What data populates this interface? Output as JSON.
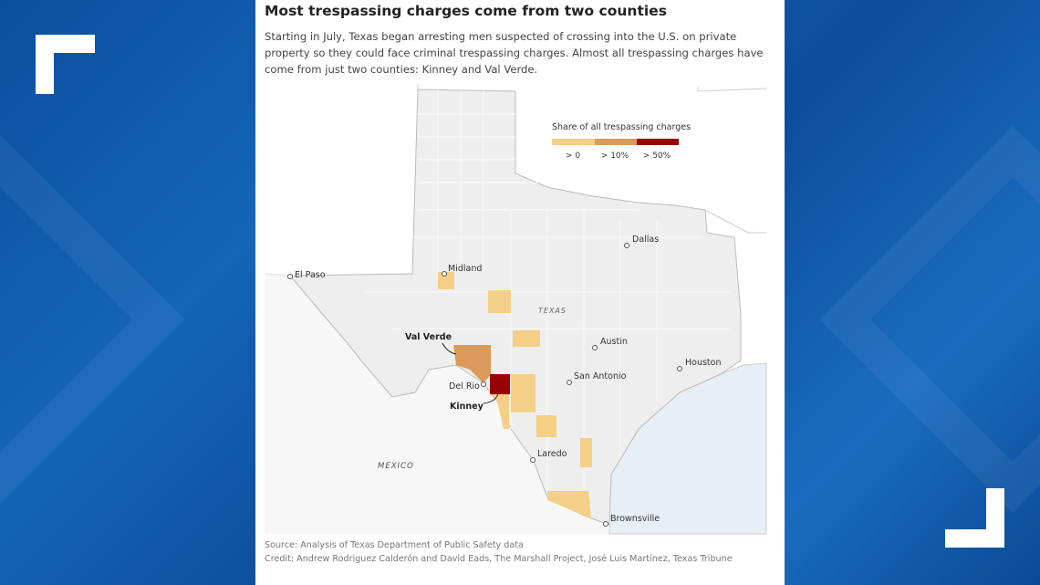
{
  "header": {
    "title": "Most trespassing charges come from two counties",
    "description": "Starting in July, Texas began arresting men suspected of crossing into the U.S. on private property so they could face criminal trespassing charges. Almost all trespassing charges have come from just two counties: Kinney and Val Verde."
  },
  "legend": {
    "title": "Share of all trespassing charges",
    "items": [
      {
        "label": "> 0",
        "color": "#f5cf86"
      },
      {
        "label": "> 10%",
        "color": "#d99a5a"
      },
      {
        "label": "> 50%",
        "color": "#990000"
      }
    ]
  },
  "map": {
    "region_label": "TEXAS",
    "country_label": "MEXICO",
    "cities": [
      "El Paso",
      "Midland",
      "Dallas",
      "Austin",
      "San Antonio",
      "Houston",
      "Del Rio",
      "Laredo",
      "Brownsville"
    ],
    "counties": [
      {
        "name": "Val Verde",
        "share": "> 10%"
      },
      {
        "name": "Kinney",
        "share": "> 50%"
      }
    ],
    "colors": {
      "land": "#eeeeee",
      "water": "#e8eef5",
      "border": "#cccccc"
    }
  },
  "footer": {
    "source": "Source: Analysis of Texas Department of Public Safety data",
    "credit": "Credit: Andrew Rodriguez Calderón and David Eads, The Marshall Project, José Luis Martínez, Texas Tribune"
  }
}
